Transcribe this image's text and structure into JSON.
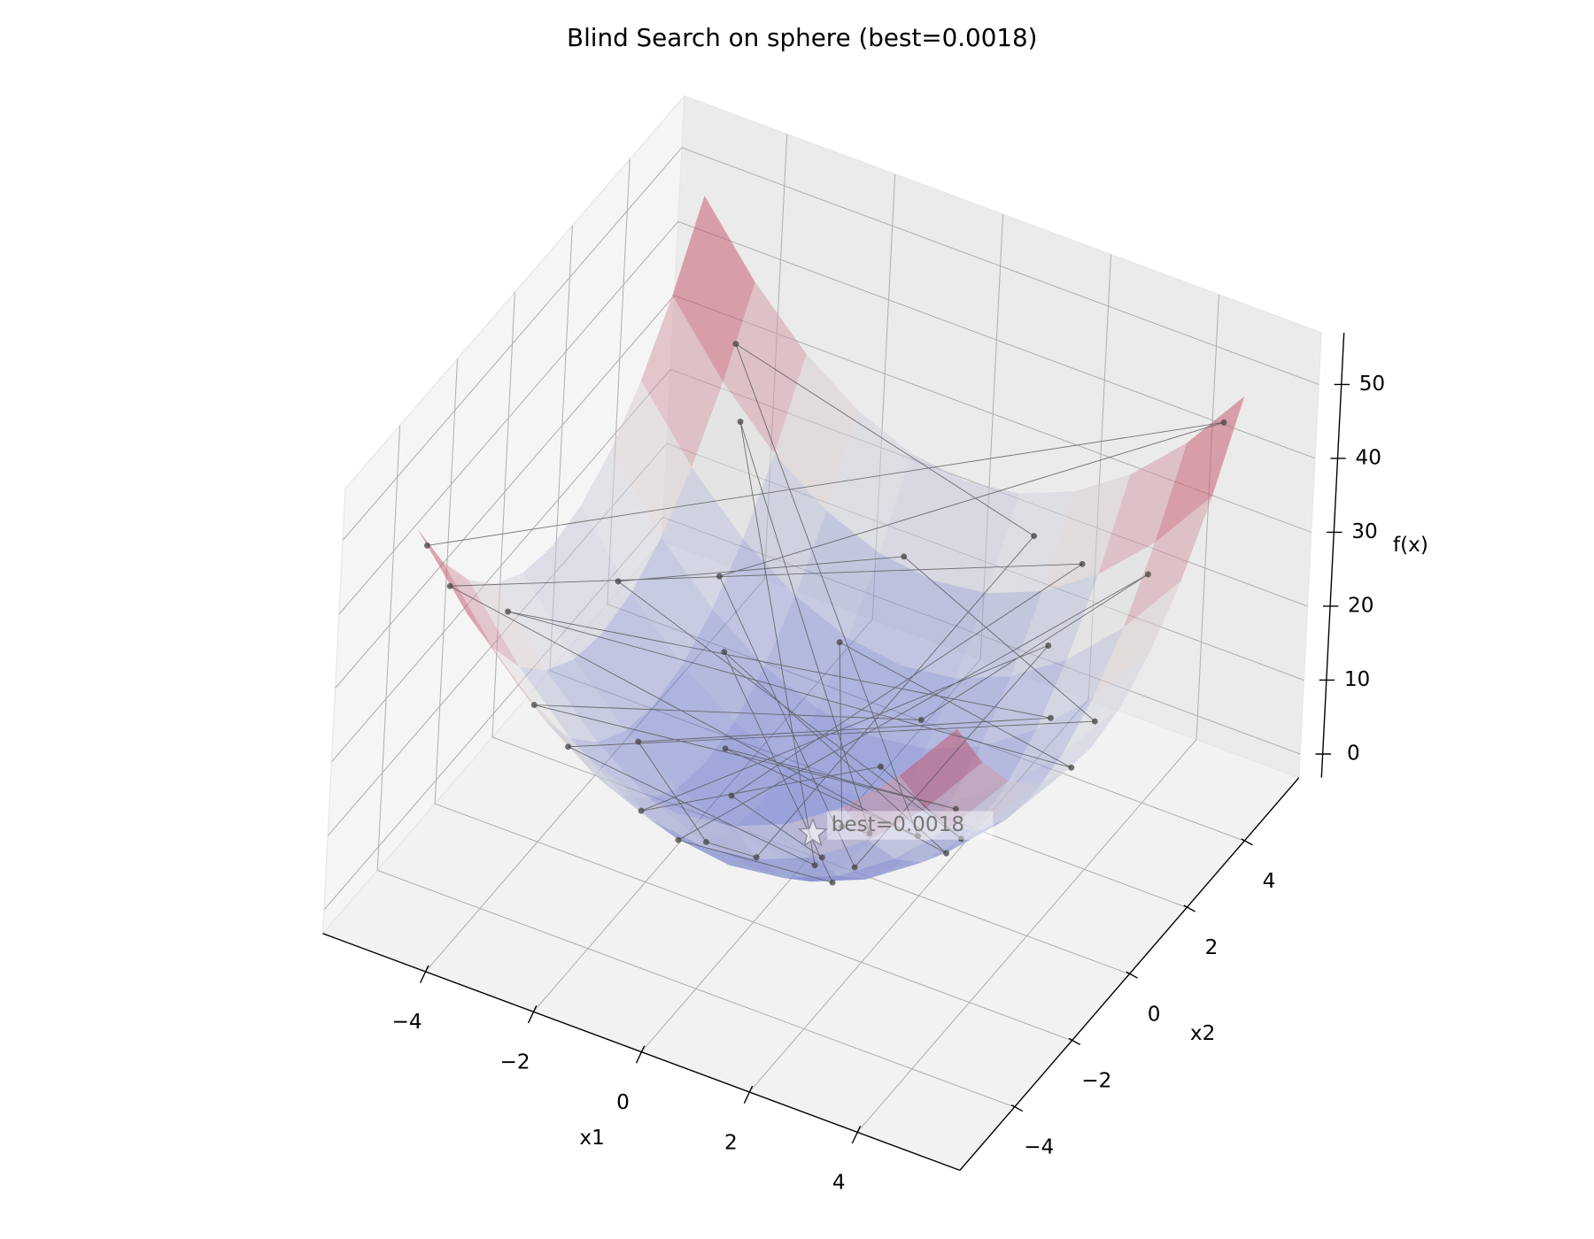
{
  "chart_data": {
    "type": "surface3d",
    "title": "Blind Search on sphere (best=0.0018)",
    "xlabel": "x1",
    "ylabel": "x2",
    "zlabel": "f(x)",
    "xlim": [
      -5.9,
      5.9
    ],
    "ylim": [
      -5.9,
      5.9
    ],
    "zlim": [
      -3.2,
      57
    ],
    "xticks": [
      {
        "value": -4,
        "label": "−4"
      },
      {
        "value": -2,
        "label": "−2"
      },
      0,
      2,
      4
    ],
    "yticks": [
      {
        "value": -4,
        "label": "−4"
      },
      {
        "value": -2,
        "label": "−2"
      },
      0,
      2,
      4
    ],
    "zticks": [
      0,
      10,
      20,
      30,
      40,
      50
    ],
    "grid": true,
    "surface": {
      "colormap": [
        "#3b4cc0",
        "#dddddd",
        "#b40426"
      ],
      "x1": [
        -5,
        -4,
        -3,
        -2,
        -1,
        0,
        1,
        2,
        3,
        4,
        5
      ],
      "x2": [
        -5,
        -4,
        -3,
        -2,
        -1,
        0,
        1,
        2,
        3,
        4,
        5
      ],
      "z": [
        [
          50,
          41,
          34,
          29,
          26,
          25,
          26,
          29,
          34,
          41,
          50
        ],
        [
          41,
          32,
          25,
          20,
          17,
          16,
          17,
          20,
          25,
          32,
          41
        ],
        [
          34,
          25,
          18,
          13,
          10,
          9,
          10,
          13,
          18,
          25,
          34
        ],
        [
          29,
          20,
          13,
          8,
          5,
          4,
          5,
          8,
          13,
          20,
          29
        ],
        [
          26,
          17,
          10,
          5,
          2,
          1,
          2,
          5,
          10,
          17,
          26
        ],
        [
          25,
          16,
          9,
          4,
          1,
          0,
          1,
          4,
          9,
          16,
          25
        ],
        [
          26,
          17,
          10,
          5,
          2,
          1,
          2,
          5,
          10,
          17,
          26
        ],
        [
          29,
          20,
          13,
          8,
          5,
          4,
          5,
          8,
          13,
          20,
          29
        ],
        [
          34,
          25,
          18,
          13,
          10,
          9,
          10,
          13,
          18,
          25,
          34
        ],
        [
          41,
          32,
          25,
          20,
          17,
          16,
          17,
          20,
          25,
          32,
          41
        ],
        [
          50,
          41,
          34,
          29,
          26,
          25,
          26,
          29,
          34,
          41,
          50
        ]
      ]
    },
    "samples": {
      "color": "#444444",
      "x1": [
        -4.9,
        4.7,
        -3.1,
        1.2,
        2.5,
        -1.7,
        0.4,
        3.8,
        -4.2,
        -0.6,
        4.4,
        -2.3,
        1.9,
        -3.6,
        0.9,
        2.8,
        -1.1,
        4.9,
        -4.7,
        3.2,
        -2.8,
        0.2,
        -0.3,
        1.5,
        -4.0,
        3.6,
        -1.9,
        2.2,
        -3.3,
        0.7,
        4.1,
        -0.9,
        1.4,
        -2.6,
        3.0,
        -4.4,
        2.6,
        -1.4,
        0.5
      ],
      "x2": [
        -4.8,
        4.9,
        2.4,
        -0.8,
        3.3,
        -2.9,
        1.6,
        -2.2,
        0.9,
        4.1,
        1.3,
        -4.5,
        -3.7,
        3.9,
        0.3,
        -4.6,
        2.9,
        -0.5,
        -2.1,
        2.1,
        -0.9,
        -4.3,
        -1.4,
        4.6,
        4.4,
        -3.4,
        0.5,
        0.8,
        -3.8,
        2.4,
        3.6,
        -3.1,
        -2.0,
        1.7,
        -1.1,
        -4.9,
        4.2,
        -0.2,
        -0.6
      ],
      "f": [
        47.05,
        46.1,
        15.37,
        2.08,
        17.14,
        11.3,
        2.72,
        19.28,
        18.45,
        17.17,
        21.05,
        25.54,
        17.3,
        28.17,
        0.9,
        29.0,
        9.62,
        24.26,
        26.5,
        14.65,
        8.65,
        18.53,
        2.05,
        23.41,
        35.36,
        24.52,
        3.86,
        5.48,
        25.33,
        6.25,
        29.77,
        10.42,
        5.96,
        9.65,
        10.21,
        43.37,
        24.4,
        2.0,
        0.61
      ]
    },
    "best": {
      "x1": 0.03,
      "x2": -0.03,
      "f": 0.0018,
      "label": "best=0.0018"
    }
  }
}
